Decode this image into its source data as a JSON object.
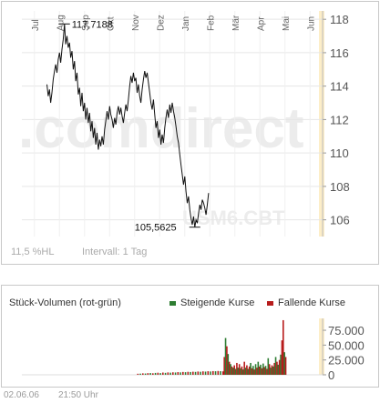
{
  "chart_data": [
    {
      "type": "line",
      "name": "price",
      "x_labels": [
        "Jul",
        "Aug",
        "Sep",
        "Okt",
        "Nov",
        "Dez",
        "Jan",
        "Feb",
        "Mär",
        "Apr",
        "Mai",
        "Jun"
      ],
      "yticks": [
        106,
        108,
        110,
        112,
        114,
        116,
        118
      ],
      "ylim": [
        105,
        118.5
      ],
      "high_label": "117,7188",
      "low_label": "105,5625",
      "watermark_main": ".comdirect",
      "watermark_symbol": "USM6.CBT",
      "footer_left": "11,5 %HL",
      "footer_interval": "Intervall: 1 Tag",
      "highlight_color": "#fdeec8",
      "watermark_color": "#ececec",
      "points": [
        [
          1.0,
          114.1
        ],
        [
          1.05,
          113.4
        ],
        [
          1.1,
          113.8
        ],
        [
          1.15,
          113.0
        ],
        [
          1.2,
          113.6
        ],
        [
          1.25,
          114.4
        ],
        [
          1.3,
          114.9
        ],
        [
          1.35,
          115.3
        ],
        [
          1.4,
          114.8
        ],
        [
          1.45,
          115.6
        ],
        [
          1.5,
          116.0
        ],
        [
          1.55,
          115.4
        ],
        [
          1.6,
          116.2
        ],
        [
          1.65,
          116.8
        ],
        [
          1.7,
          117.72
        ],
        [
          1.75,
          116.5
        ],
        [
          1.8,
          117.0
        ],
        [
          1.85,
          116.3
        ],
        [
          1.9,
          116.6
        ],
        [
          1.95,
          115.7
        ],
        [
          2.0,
          116.1
        ],
        [
          2.05,
          115.0
        ],
        [
          2.1,
          115.5
        ],
        [
          2.15,
          114.3
        ],
        [
          2.2,
          114.8
        ],
        [
          2.25,
          113.5
        ],
        [
          2.3,
          113.9
        ],
        [
          2.35,
          112.8
        ],
        [
          2.4,
          113.6
        ],
        [
          2.45,
          112.5
        ],
        [
          2.5,
          113.0
        ],
        [
          2.55,
          112.0
        ],
        [
          2.6,
          112.7
        ],
        [
          2.65,
          111.8
        ],
        [
          2.7,
          112.4
        ],
        [
          2.75,
          111.3
        ],
        [
          2.8,
          111.9
        ],
        [
          2.85,
          110.9
        ],
        [
          2.9,
          111.5
        ],
        [
          2.95,
          110.5
        ],
        [
          3.0,
          111.2
        ],
        [
          3.05,
          110.2
        ],
        [
          3.1,
          110.8
        ],
        [
          3.15,
          110.4
        ],
        [
          3.2,
          111.0
        ],
        [
          3.25,
          110.5
        ],
        [
          3.3,
          111.4
        ],
        [
          3.35,
          111.9
        ],
        [
          3.4,
          112.5
        ],
        [
          3.45,
          112.0
        ],
        [
          3.5,
          112.8
        ],
        [
          3.55,
          112.3
        ],
        [
          3.6,
          112.0
        ],
        [
          3.65,
          111.5
        ],
        [
          3.7,
          112.1
        ],
        [
          3.75,
          111.7
        ],
        [
          3.8,
          112.4
        ],
        [
          3.85,
          112.8
        ],
        [
          3.9,
          112.3
        ],
        [
          3.95,
          112.7
        ],
        [
          4.0,
          112.2
        ],
        [
          4.05,
          111.8
        ],
        [
          4.1,
          112.4
        ],
        [
          4.15,
          112.9
        ],
        [
          4.2,
          112.5
        ],
        [
          4.25,
          113.2
        ],
        [
          4.3,
          114.0
        ],
        [
          4.35,
          114.6
        ],
        [
          4.4,
          114.2
        ],
        [
          4.45,
          114.8
        ],
        [
          4.5,
          114.3
        ],
        [
          4.55,
          114.5
        ],
        [
          4.6,
          113.6
        ],
        [
          4.65,
          114.1
        ],
        [
          4.7,
          113.4
        ],
        [
          4.75,
          113.0
        ],
        [
          4.8,
          113.8
        ],
        [
          4.85,
          114.4
        ],
        [
          4.9,
          114.9
        ],
        [
          4.95,
          114.5
        ],
        [
          5.0,
          114.8
        ],
        [
          5.05,
          114.2
        ],
        [
          5.1,
          113.6
        ],
        [
          5.15,
          113.0
        ],
        [
          5.2,
          112.6
        ],
        [
          5.25,
          113.2
        ],
        [
          5.3,
          112.3
        ],
        [
          5.35,
          111.5
        ],
        [
          5.4,
          111.9
        ],
        [
          5.45,
          110.9
        ],
        [
          5.5,
          111.4
        ],
        [
          5.55,
          110.5
        ],
        [
          5.6,
          111.1
        ],
        [
          5.65,
          110.6
        ],
        [
          5.7,
          111.5
        ],
        [
          5.75,
          112.1
        ],
        [
          5.8,
          112.6
        ],
        [
          5.85,
          112.1
        ],
        [
          5.9,
          112.9
        ],
        [
          5.95,
          112.4
        ],
        [
          6.0,
          113.0
        ],
        [
          6.05,
          112.5
        ],
        [
          6.1,
          112.1
        ],
        [
          6.15,
          111.6
        ],
        [
          6.2,
          111.0
        ],
        [
          6.25,
          110.6
        ],
        [
          6.3,
          109.9
        ],
        [
          6.35,
          109.3
        ],
        [
          6.4,
          108.7
        ],
        [
          6.45,
          108.1
        ],
        [
          6.5,
          108.6
        ],
        [
          6.55,
          107.7
        ],
        [
          6.6,
          107.0
        ],
        [
          6.65,
          107.4
        ],
        [
          6.7,
          106.6
        ],
        [
          6.75,
          106.1
        ],
        [
          6.8,
          105.7
        ],
        [
          6.85,
          106.2
        ],
        [
          6.9,
          105.56
        ],
        [
          6.95,
          106.0
        ],
        [
          7.0,
          105.8
        ],
        [
          7.05,
          106.4
        ],
        [
          7.1,
          106.9
        ],
        [
          7.15,
          106.6
        ],
        [
          7.2,
          107.2
        ],
        [
          7.25,
          107.0
        ],
        [
          7.3,
          106.7
        ],
        [
          7.35,
          106.3
        ],
        [
          7.4,
          106.9
        ],
        [
          7.45,
          107.6
        ]
      ]
    },
    {
      "type": "bar",
      "name": "volume",
      "title": "Stück-Volumen (rot-grün)",
      "legend_up": "Steigende Kurse",
      "legend_down": "Fallende Kurse",
      "up_color": "#2e7d32",
      "down_color": "#b71c1c",
      "yticks_labels": [
        "75.000",
        "50.000",
        "25.000",
        "0"
      ],
      "yticks": [
        75000,
        50000,
        25000,
        0
      ],
      "ylim": [
        0,
        95000
      ],
      "values": [
        [
          4.6,
          1800,
          "d"
        ],
        [
          4.7,
          2000,
          "u"
        ],
        [
          4.8,
          2500,
          "d"
        ],
        [
          4.9,
          2200,
          "u"
        ],
        [
          5.0,
          2800,
          "d"
        ],
        [
          5.1,
          3000,
          "u"
        ],
        [
          5.2,
          2600,
          "d"
        ],
        [
          5.3,
          3200,
          "u"
        ],
        [
          5.4,
          3500,
          "d"
        ],
        [
          5.5,
          2900,
          "u"
        ],
        [
          5.6,
          3800,
          "d"
        ],
        [
          5.7,
          3300,
          "u"
        ],
        [
          5.8,
          4000,
          "d"
        ],
        [
          5.9,
          3600,
          "u"
        ],
        [
          6.0,
          4200,
          "d"
        ],
        [
          6.1,
          3900,
          "u"
        ],
        [
          6.2,
          4500,
          "d"
        ],
        [
          6.3,
          4100,
          "u"
        ],
        [
          6.4,
          4800,
          "d"
        ],
        [
          6.5,
          4400,
          "u"
        ],
        [
          6.6,
          5000,
          "d"
        ],
        [
          6.7,
          4700,
          "u"
        ],
        [
          6.8,
          5200,
          "d"
        ],
        [
          6.9,
          4900,
          "u"
        ],
        [
          7.0,
          5500,
          "d"
        ],
        [
          7.1,
          5100,
          "u"
        ],
        [
          7.2,
          5800,
          "d"
        ],
        [
          7.3,
          5400,
          "u"
        ],
        [
          7.4,
          6000,
          "d"
        ],
        [
          7.5,
          5600,
          "u"
        ],
        [
          7.6,
          6200,
          "d"
        ],
        [
          7.7,
          6000,
          "u"
        ],
        [
          7.8,
          6400,
          "d"
        ],
        [
          7.9,
          6100,
          "u"
        ],
        [
          8.0,
          5800,
          "d"
        ],
        [
          8.05,
          30000,
          "d"
        ],
        [
          8.1,
          62000,
          "u"
        ],
        [
          8.15,
          48000,
          "d"
        ],
        [
          8.2,
          35000,
          "u"
        ],
        [
          8.25,
          22000,
          "d"
        ],
        [
          8.3,
          18000,
          "u"
        ],
        [
          8.35,
          14000,
          "d"
        ],
        [
          8.4,
          12000,
          "u"
        ],
        [
          8.45,
          16000,
          "d"
        ],
        [
          8.5,
          10000,
          "u"
        ],
        [
          8.55,
          20000,
          "d"
        ],
        [
          8.6,
          12000,
          "u"
        ],
        [
          8.65,
          18000,
          "d"
        ],
        [
          8.7,
          11000,
          "u"
        ],
        [
          8.75,
          14000,
          "d"
        ],
        [
          8.8,
          9000,
          "u"
        ],
        [
          8.85,
          22000,
          "d"
        ],
        [
          8.9,
          12000,
          "u"
        ],
        [
          8.95,
          16000,
          "d"
        ],
        [
          9.0,
          10000,
          "u"
        ],
        [
          9.05,
          14000,
          "d"
        ],
        [
          9.1,
          20000,
          "u"
        ],
        [
          9.15,
          11000,
          "d"
        ],
        [
          9.2,
          15000,
          "u"
        ],
        [
          9.25,
          9000,
          "d"
        ],
        [
          9.3,
          18000,
          "u"
        ],
        [
          9.35,
          12000,
          "d"
        ],
        [
          9.4,
          22000,
          "u"
        ],
        [
          9.45,
          14000,
          "d"
        ],
        [
          9.5,
          17000,
          "u"
        ],
        [
          9.55,
          11000,
          "d"
        ],
        [
          9.6,
          19000,
          "u"
        ],
        [
          9.65,
          13000,
          "d"
        ],
        [
          9.7,
          15000,
          "u"
        ],
        [
          9.75,
          10000,
          "d"
        ],
        [
          9.8,
          28000,
          "u"
        ],
        [
          9.85,
          18000,
          "d"
        ],
        [
          9.9,
          12000,
          "u"
        ],
        [
          9.95,
          16000,
          "d"
        ],
        [
          10.0,
          14000,
          "u"
        ],
        [
          10.05,
          20000,
          "d"
        ],
        [
          10.1,
          30000,
          "u"
        ],
        [
          10.15,
          22000,
          "d"
        ],
        [
          10.2,
          17000,
          "u"
        ],
        [
          10.25,
          25000,
          "d"
        ],
        [
          10.3,
          34000,
          "u"
        ],
        [
          10.35,
          58000,
          "d"
        ],
        [
          10.4,
          92000,
          "d"
        ],
        [
          10.45,
          38000,
          "u"
        ],
        [
          10.5,
          30000,
          "d"
        ]
      ]
    }
  ],
  "footer": {
    "date": "02.06.06",
    "time": "21:50 Uhr"
  }
}
